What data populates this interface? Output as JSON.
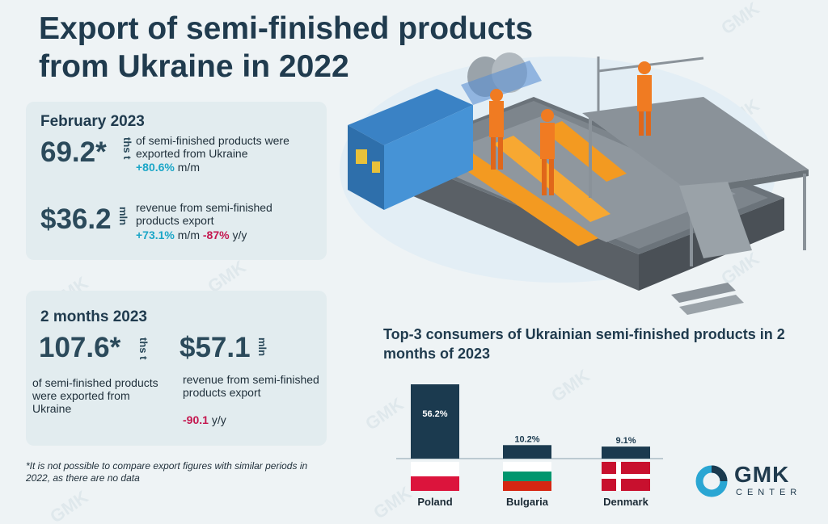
{
  "title": "Export of semi-finished products from Ukraine in 2022",
  "feb": {
    "heading": "February 2023",
    "volume_value": "69.2*",
    "volume_unit": "ths t",
    "volume_desc": "of semi-finished products were exported from Ukraine",
    "volume_mm": "+80.6%",
    "mm_label": "m/m",
    "revenue_value": "$36.2",
    "revenue_unit": "mln",
    "revenue_desc": "revenue from semi-finished products export",
    "revenue_mm": "+73.1%",
    "revenue_yy": "-87%",
    "yy_label": "y/y"
  },
  "two_months": {
    "heading": "2 months 2023",
    "volume_value": "107.6*",
    "volume_unit": "ths t",
    "volume_desc": "of semi-finished products were exported from Ukraine",
    "revenue_value": "$57.1",
    "revenue_unit": "mln",
    "revenue_desc": "revenue from semi-finished products export",
    "revenue_yy": "-90.1",
    "yy_label": "y/y"
  },
  "footnote": "*It is not possible to compare export figures with similar periods in 2022, as there are no data",
  "logo": {
    "name": "GMK",
    "sub": "CENTER"
  },
  "watermark": "GMK",
  "chart_data": {
    "type": "bar",
    "title": "Top-3 consumers of Ukrainian semi-finished products in 2 months of 2023",
    "categories": [
      "Poland",
      "Bulgaria",
      "Denmark"
    ],
    "values": [
      56.2,
      10.2,
      9.1
    ],
    "labels": [
      "56.2%",
      "10.2%",
      "9.1%"
    ],
    "color": "#1b3a4f"
  },
  "colors": {
    "positive": "#1ba6c7",
    "negative": "#c4174f",
    "navy": "#1b3a4f"
  }
}
